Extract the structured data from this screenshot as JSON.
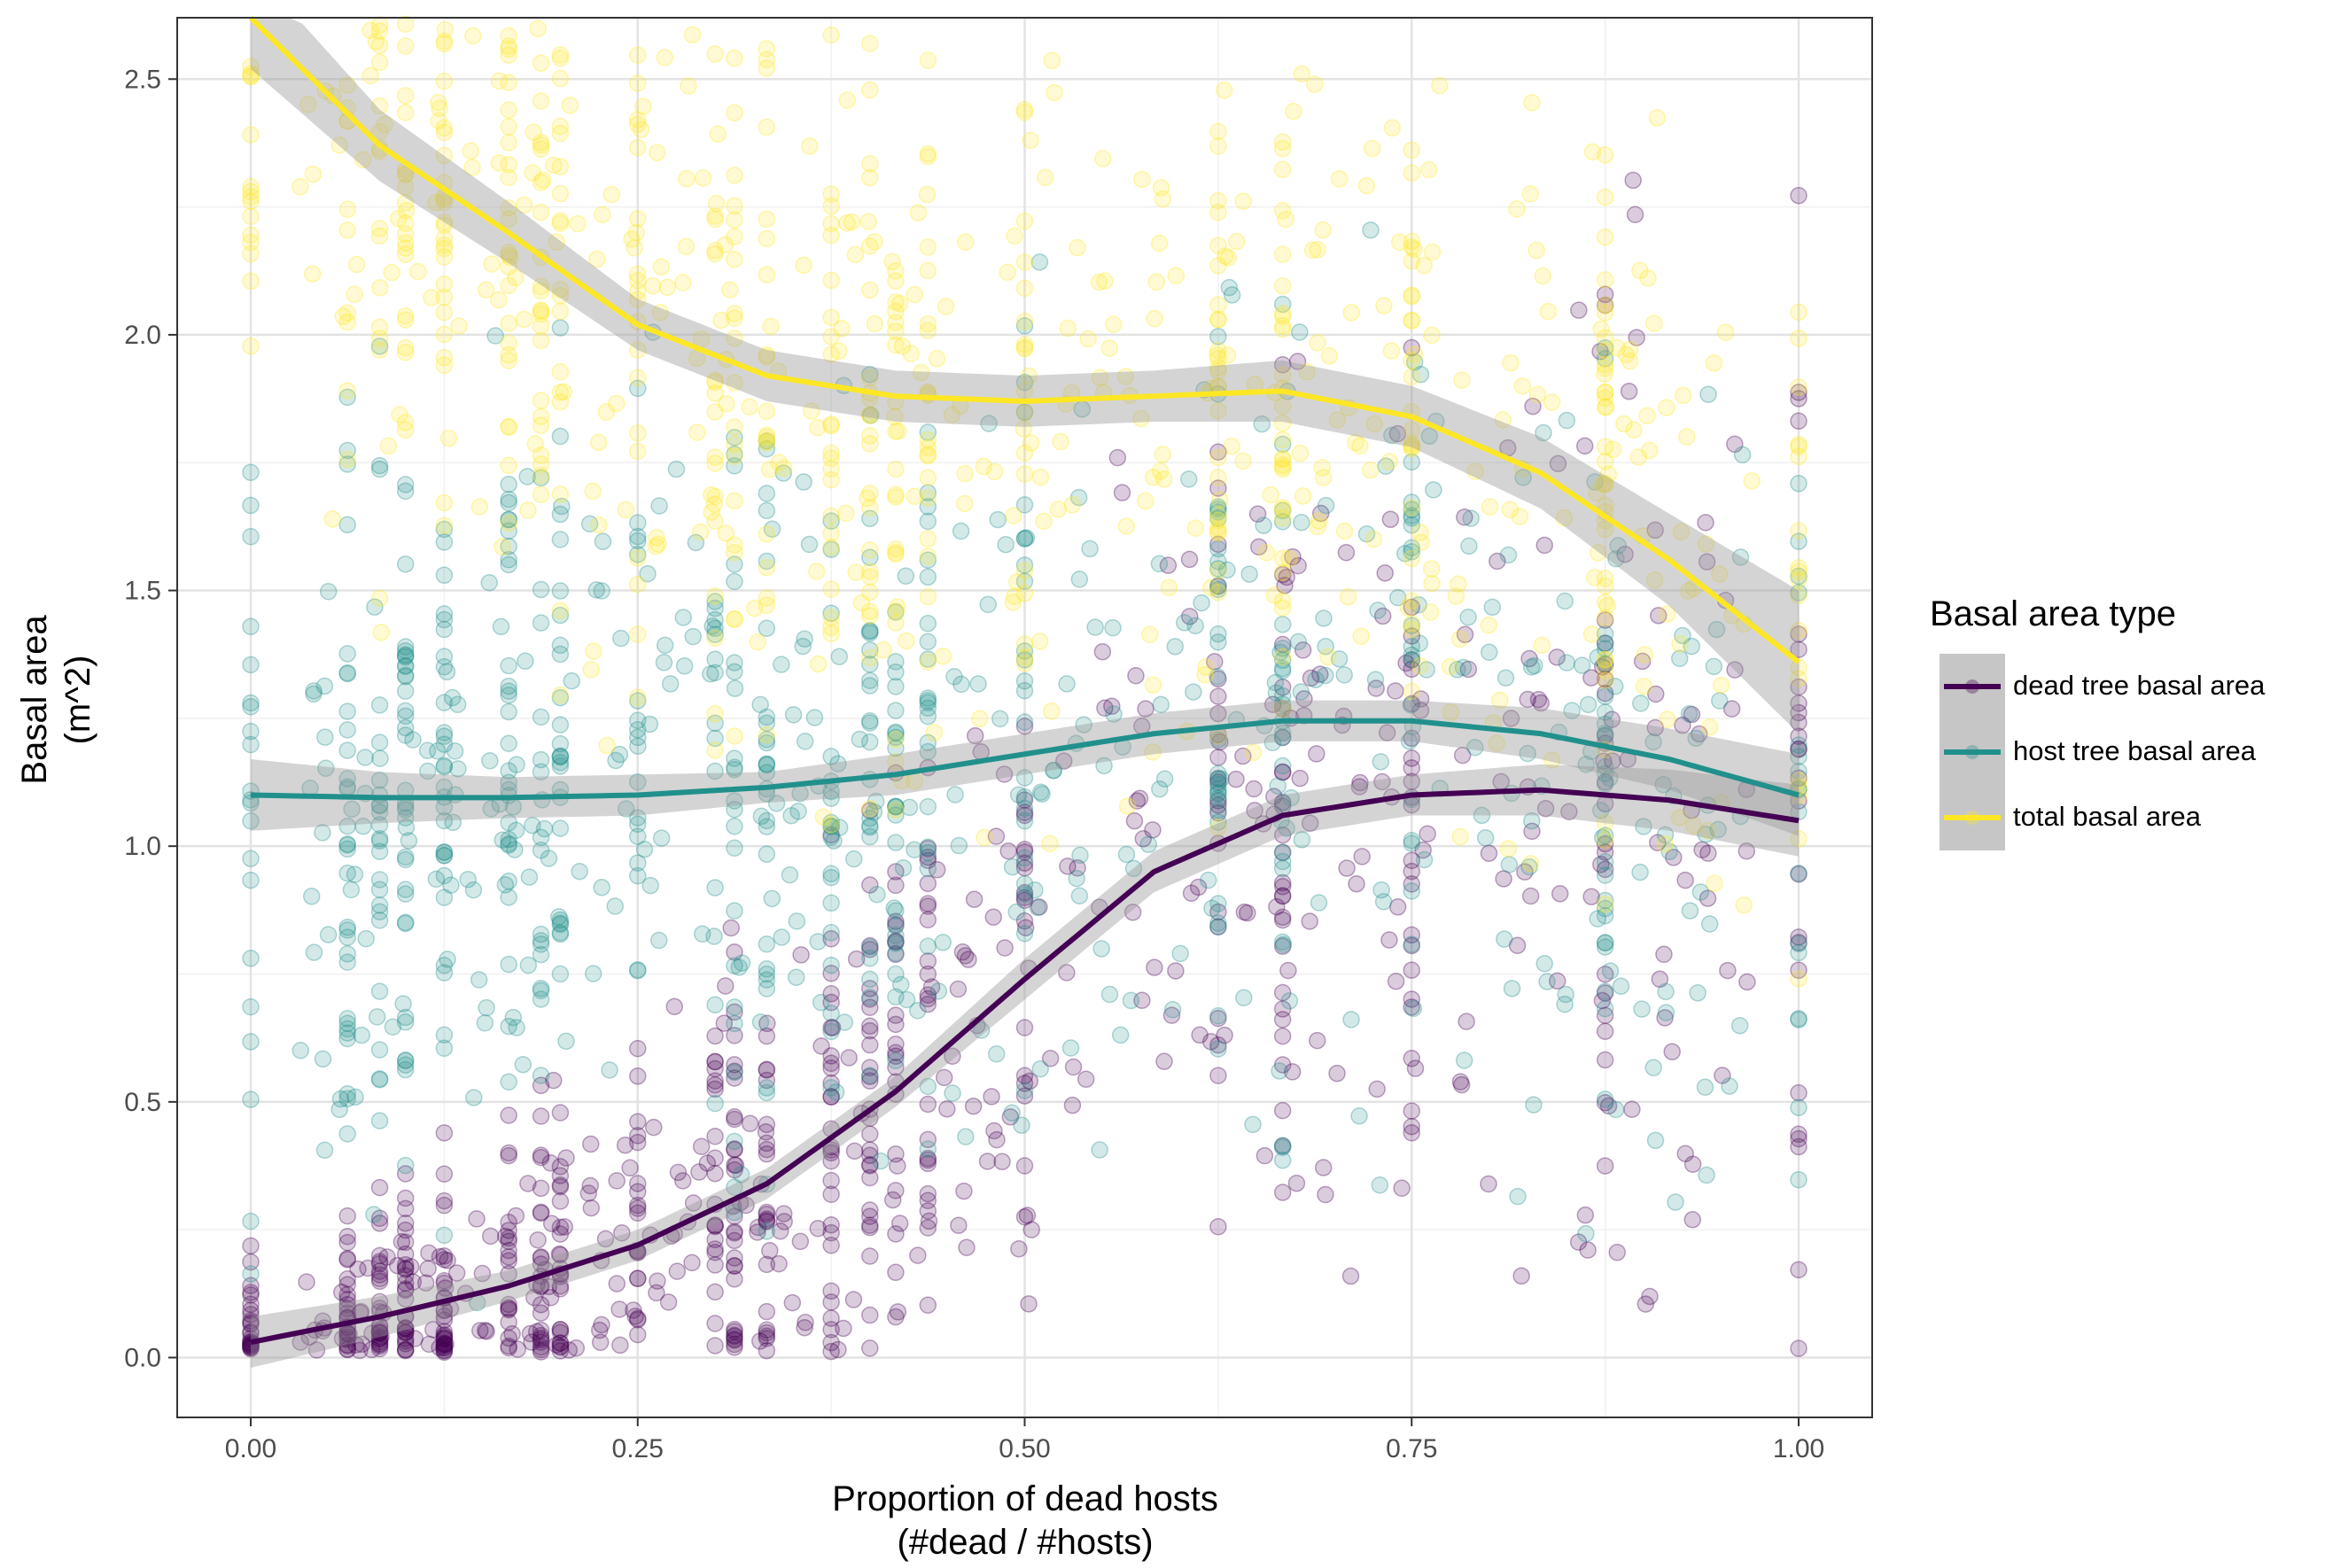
{
  "chart_data": {
    "type": "scatter",
    "title": "",
    "xlabel": "Proportion of dead hosts",
    "xlabel_line2": "(#dead / #hosts)",
    "ylabel": "Basal area",
    "ylabel_line2": "(m^2)",
    "xlim": [
      -0.095,
      2.095
    ],
    "ylim": [
      -0.117,
      2.62
    ],
    "x_ticks": [
      0,
      0.5,
      1,
      1.5,
      2
    ],
    "x_tick_labels": [
      "0.00",
      "0.25",
      "0.50",
      "0.75",
      "1.00"
    ],
    "y_ticks": [
      0,
      0.5,
      1,
      1.5,
      2,
      2.5
    ],
    "y_tick_labels": [
      "0.0",
      "0.5",
      "1.0",
      "1.5",
      "2.0",
      "2.5"
    ],
    "grid": true,
    "legend": {
      "title": "Basal area type",
      "position": "right",
      "entries": [
        "dead tree basal area",
        "host tree basal area",
        "total basal area"
      ]
    },
    "series": [
      {
        "name": "dead tree basal area",
        "color": "#440154",
        "x": [
          0,
          0.167,
          0.333,
          0.5,
          0.667,
          0.833,
          1,
          1.167,
          1.333,
          1.5,
          1.667,
          1.833,
          2
        ],
        "y": [
          0.03,
          0.08,
          0.14,
          0.22,
          0.34,
          0.52,
          0.74,
          0.95,
          1.06,
          1.1,
          1.11,
          1.09,
          1.05
        ],
        "band": [
          0.05,
          0.04,
          0.03,
          0.03,
          0.03,
          0.03,
          0.04,
          0.04,
          0.04,
          0.04,
          0.05,
          0.06,
          0.07
        ]
      },
      {
        "name": "host tree basal area",
        "color": "#21908C",
        "x": [
          0,
          0.167,
          0.333,
          0.5,
          0.667,
          0.833,
          1,
          1.167,
          1.333,
          1.5,
          1.667,
          1.833,
          2
        ],
        "y": [
          1.1,
          1.095,
          1.095,
          1.1,
          1.115,
          1.14,
          1.18,
          1.22,
          1.245,
          1.245,
          1.22,
          1.17,
          1.1
        ],
        "band": [
          0.07,
          0.05,
          0.04,
          0.04,
          0.03,
          0.04,
          0.04,
          0.04,
          0.04,
          0.04,
          0.05,
          0.06,
          0.08
        ]
      },
      {
        "name": "total basal area",
        "color": "#FDE725",
        "x": [
          0,
          0.167,
          0.333,
          0.5,
          0.667,
          0.833,
          1,
          1.167,
          1.333,
          1.5,
          1.667,
          1.833,
          2
        ],
        "y": [
          2.62,
          2.37,
          2.2,
          2.02,
          1.92,
          1.88,
          1.87,
          1.88,
          1.89,
          1.84,
          1.73,
          1.56,
          1.36
        ],
        "band": [
          0.1,
          0.07,
          0.06,
          0.05,
          0.05,
          0.05,
          0.05,
          0.05,
          0.06,
          0.06,
          0.07,
          0.09,
          0.14
        ]
      }
    ]
  }
}
